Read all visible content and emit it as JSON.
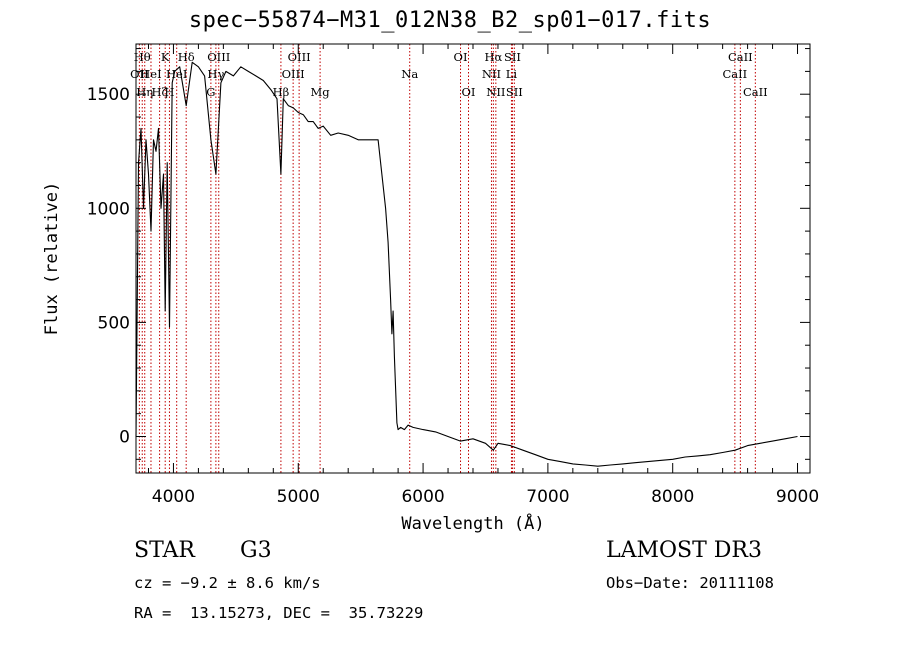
{
  "chart_data": {
    "type": "line",
    "title": "spec−55874−M31_012N38_B2_sp01−017.fits",
    "xlabel": "Wavelength (Å)",
    "ylabel": "Flux (relative)",
    "xlim": [
      3700,
      9100
    ],
    "ylim": [
      -160,
      1720
    ],
    "xticks": [
      4000,
      5000,
      6000,
      7000,
      8000,
      9000
    ],
    "yticks": [
      0,
      500,
      1000,
      1500
    ],
    "line_color": "#000000",
    "marker_color": "#c00000",
    "series": [
      {
        "name": "flux",
        "x": [
          3700,
          3720,
          3740,
          3760,
          3780,
          3800,
          3820,
          3840,
          3860,
          3880,
          3900,
          3920,
          3934,
          3950,
          3968,
          3990,
          4010,
          4050,
          4102,
          4150,
          4200,
          4250,
          4300,
          4340,
          4380,
          4420,
          4480,
          4540,
          4600,
          4660,
          4720,
          4780,
          4830,
          4861,
          4880,
          4920,
          4960,
          5000,
          5040,
          5080,
          5120,
          5160,
          5200,
          5260,
          5320,
          5400,
          5480,
          5560,
          5640,
          5700,
          5720,
          5740,
          5750,
          5760,
          5770,
          5790,
          5800,
          5820,
          5850,
          5880,
          5920,
          6000,
          6100,
          6200,
          6300,
          6400,
          6500,
          6563,
          6600,
          6700,
          6800,
          6900,
          7000,
          7100,
          7200,
          7300,
          7400,
          7500,
          7600,
          7700,
          7800,
          7900,
          8000,
          8100,
          8200,
          8300,
          8400,
          8500,
          8600,
          8700,
          8800,
          8900,
          9000
        ],
        "y": [
          0,
          1200,
          1350,
          1000,
          1300,
          1150,
          900,
          1300,
          1250,
          1350,
          1000,
          1150,
          550,
          1200,
          480,
          1550,
          1600,
          1620,
          1450,
          1640,
          1620,
          1580,
          1300,
          1150,
          1550,
          1600,
          1580,
          1620,
          1600,
          1580,
          1560,
          1520,
          1480,
          1150,
          1480,
          1450,
          1440,
          1420,
          1410,
          1380,
          1380,
          1350,
          1360,
          1320,
          1330,
          1320,
          1300,
          1300,
          1300,
          1000,
          850,
          600,
          450,
          550,
          350,
          60,
          30,
          40,
          30,
          50,
          40,
          30,
          20,
          0,
          -20,
          -10,
          -30,
          -60,
          -30,
          -40,
          -60,
          -80,
          -100,
          -110,
          -120,
          -125,
          -130,
          -125,
          -120,
          -115,
          -110,
          -105,
          -100,
          -90,
          -85,
          -80,
          -70,
          -60,
          -40,
          -30,
          -20,
          -10,
          0
        ]
      }
    ],
    "lines": [
      {
        "wave": 3750,
        "label": "Hθ",
        "row": 1
      },
      {
        "wave": 3727,
        "label": "OII",
        "row": 2
      },
      {
        "wave": 3770,
        "label": "Hη",
        "row": 3
      },
      {
        "wave": 3820,
        "label": "HeI",
        "row": 2
      },
      {
        "wave": 3889,
        "label": "Hζ",
        "row": 3
      },
      {
        "wave": 3934,
        "label": "K",
        "row": 1
      },
      {
        "wave": 3968,
        "label": "H",
        "row": 3
      },
      {
        "wave": 4026,
        "label": "HeI",
        "row": 2
      },
      {
        "wave": 4102,
        "label": "Hδ",
        "row": 1
      },
      {
        "wave": 4300,
        "label": "G",
        "row": 3
      },
      {
        "wave": 4340,
        "label": "Hγ",
        "row": 2
      },
      {
        "wave": 4363,
        "label": "OIII",
        "row": 1
      },
      {
        "wave": 4861,
        "label": "Hβ",
        "row": 3
      },
      {
        "wave": 4959,
        "label": "OIII",
        "row": 2
      },
      {
        "wave": 5007,
        "label": "OIII",
        "row": 1
      },
      {
        "wave": 5175,
        "label": "Mg",
        "row": 3
      },
      {
        "wave": 5893,
        "label": "Na",
        "row": 2
      },
      {
        "wave": 6300,
        "label": "OI",
        "row": 1
      },
      {
        "wave": 6364,
        "label": "OI",
        "row": 3
      },
      {
        "wave": 6548,
        "label": "NII",
        "row": 2
      },
      {
        "wave": 6563,
        "label": "Hα",
        "row": 1
      },
      {
        "wave": 6583,
        "label": "NII",
        "row": 3
      },
      {
        "wave": 6708,
        "label": "Li",
        "row": 2
      },
      {
        "wave": 6716,
        "label": "SII",
        "row": 1
      },
      {
        "wave": 6731,
        "label": "SII",
        "row": 3
      },
      {
        "wave": 8498,
        "label": "CaII",
        "row": 2
      },
      {
        "wave": 8542,
        "label": "CaII",
        "row": 1
      },
      {
        "wave": 8662,
        "label": "CaII",
        "row": 3
      }
    ]
  },
  "footer": {
    "class": "STAR",
    "subclass": "G3",
    "survey": "LAMOST DR3",
    "cz": "cz = −9.2 ± 8.6 km/s",
    "obs_date": "Obs−Date: 20111108",
    "radec": "RA =  13.15273, DEC =  35.73229"
  }
}
